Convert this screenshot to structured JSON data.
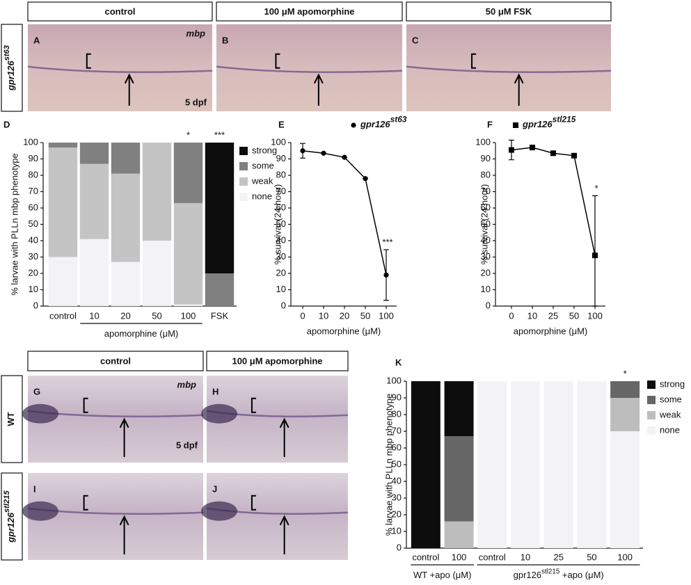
{
  "panels": {
    "headers": [
      "control",
      "100 μM apomorphine",
      "50 μM FSK",
      "control",
      "100 μM apomorphine"
    ],
    "row_labels": [
      {
        "text": "gpr126",
        "sup": "st63"
      },
      {
        "text": "WT"
      },
      {
        "text": "gpr126",
        "sup": "stl215"
      }
    ],
    "images": [
      {
        "letter": "A",
        "stain": "mbp",
        "age": "5 dpf"
      },
      {
        "letter": "B"
      },
      {
        "letter": "C"
      },
      {
        "letter": "G",
        "stain": "mbp",
        "age": "5 dpf"
      },
      {
        "letter": "H"
      },
      {
        "letter": "I"
      },
      {
        "letter": "J"
      }
    ]
  },
  "chart_data": [
    {
      "type": "stacked_bar",
      "letter": "D",
      "ylabel": "% larvae with PLLn mbp phenotype",
      "categories": [
        "control",
        "10",
        "20",
        "50",
        "100",
        "FSK"
      ],
      "group_labels": [
        {
          "text": "apomorphine (μM)"
        }
      ],
      "ylim": [
        0,
        100
      ],
      "yticks": [
        0,
        10,
        20,
        30,
        40,
        50,
        60,
        70,
        80,
        90,
        100
      ],
      "series": [
        {
          "name": "none",
          "color": "#f3f3f6",
          "values": [
            30,
            41,
            27,
            40,
            1,
            0
          ]
        },
        {
          "name": "weak",
          "color": "#c4c4c4",
          "values": [
            67,
            46,
            54,
            60,
            62,
            0
          ]
        },
        {
          "name": "some",
          "color": "#808080",
          "values": [
            3,
            13,
            19,
            0,
            37,
            20
          ]
        },
        {
          "name": "strong",
          "color": "#0d0d0d",
          "values": [
            0,
            0,
            0,
            0,
            0,
            80
          ]
        }
      ],
      "annotations": [
        "*",
        "***"
      ]
    },
    {
      "type": "line",
      "letter": "E",
      "title": {
        "text": "gpr126",
        "sup": "st63"
      },
      "marker": "circle",
      "ylabel": "% survival (24 hour)",
      "xlabel": "apomorphine (μM)",
      "categories": [
        "0",
        "10",
        "20",
        "50",
        "100"
      ],
      "values": [
        95,
        93.5,
        91,
        78,
        19
      ],
      "errors": [
        4.5,
        0,
        0,
        0,
        15.5
      ],
      "color": "#000000",
      "ylim": [
        0,
        100
      ],
      "yticks": [
        0,
        10,
        20,
        30,
        40,
        50,
        60,
        70,
        80,
        90,
        100
      ],
      "annotations": [
        "***"
      ]
    },
    {
      "type": "line",
      "letter": "F",
      "title": {
        "text": "gpr126",
        "sup": "stl215"
      },
      "marker": "square",
      "ylabel": "% survival (24 hour)",
      "xlabel": "apomorphine (μM)",
      "categories": [
        "0",
        "10",
        "25",
        "50",
        "100"
      ],
      "values": [
        95.5,
        97,
        93.5,
        92,
        31
      ],
      "errors": [
        6,
        0,
        0,
        0,
        36.5
      ],
      "color": "#000000",
      "ylim": [
        0,
        100
      ],
      "yticks": [
        0,
        10,
        20,
        30,
        40,
        50,
        60,
        70,
        80,
        90,
        100
      ],
      "annotations": [
        "*"
      ]
    },
    {
      "type": "stacked_bar",
      "letter": "K",
      "ylabel": "% larvae with PLLn mbp phenotype",
      "categories": [
        "control",
        "100",
        "control",
        "10",
        "25",
        "50",
        "100"
      ],
      "group_labels": [
        {
          "text": "WT +apo (μM)"
        },
        {
          "text": "gpr126",
          "sup": "stl215",
          "suffix": " +apo (μM)"
        }
      ],
      "ylim": [
        0,
        100
      ],
      "yticks": [
        0,
        10,
        20,
        30,
        40,
        50,
        60,
        70,
        80,
        90,
        100
      ],
      "series": [
        {
          "name": "none",
          "color": "#f3f3f6",
          "values": [
            0,
            0,
            100,
            100,
            100,
            100,
            70
          ]
        },
        {
          "name": "weak",
          "color": "#bdbdbd",
          "values": [
            0,
            16,
            0,
            0,
            0,
            0,
            20
          ]
        },
        {
          "name": "some",
          "color": "#666666",
          "values": [
            0,
            51,
            0,
            0,
            0,
            0,
            10
          ]
        },
        {
          "name": "strong",
          "color": "#0d0d0d",
          "values": [
            100,
            33,
            0,
            0,
            0,
            0,
            0
          ]
        }
      ],
      "annotations": [
        "*"
      ]
    }
  ]
}
